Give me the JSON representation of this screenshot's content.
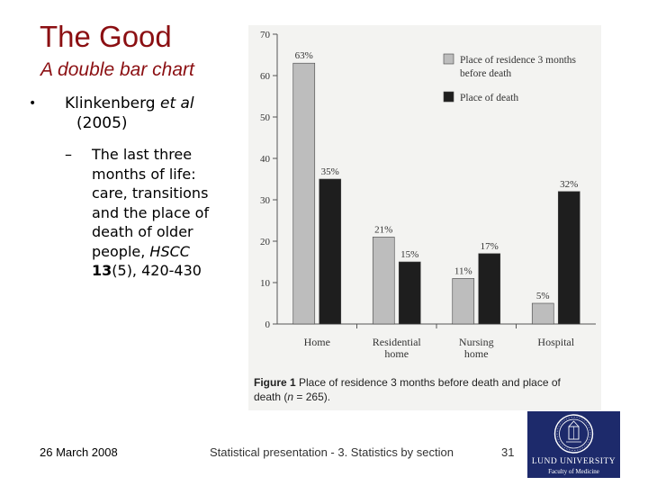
{
  "slide": {
    "title": "The Good",
    "subtitle": "A double bar chart",
    "bullet": {
      "marker": "•",
      "ref_plain": "Klinkenberg ",
      "ref_italic": "et al",
      "year": "(2005)"
    },
    "sub_bullet": {
      "marker": "–",
      "lines": [
        "The last three",
        "months of life:",
        "care, transitions",
        "and the place of",
        "death of older"
      ],
      "line6_plain": "people, ",
      "line6_italic": "HSCC",
      "vol_bold": "13",
      "vol_rest": "(5), 420-430"
    },
    "footer": {
      "date": "26 March 2008",
      "title": "Statistical presentation - 3. Statistics by section",
      "page": "31"
    },
    "logo": {
      "name": "LUND UNIVERSITY",
      "faculty": "Faculty of Medicine",
      "seal_icon": "university-seal-icon"
    }
  },
  "figure_caption": {
    "label": "Figure 1",
    "text1": "Place of residence 3 months before death and place of",
    "text2_pre": "death (",
    "text2_n": "n",
    "text2_post": " = 265)."
  },
  "chart_data": {
    "type": "bar",
    "categories": [
      "Home",
      "Residential\nhome",
      "Nursing\nhome",
      "Hospital"
    ],
    "series": [
      {
        "name": "Place of residence 3 months before death",
        "values": [
          63,
          21,
          11,
          5
        ],
        "labels": [
          "63%",
          "21%",
          "11%",
          "5%"
        ],
        "color": "#bdbdbd"
      },
      {
        "name": "Place of death",
        "values": [
          35,
          15,
          17,
          32
        ],
        "labels": [
          "35%",
          "15%",
          "17%",
          "32%"
        ],
        "color": "#1e1e1e"
      }
    ],
    "yticks": [
      0,
      10,
      20,
      30,
      40,
      50,
      60,
      70
    ],
    "ylim": [
      0,
      70
    ],
    "legend_position": "top-right",
    "grid": false,
    "xlabel": "",
    "ylabel": ""
  },
  "colors": {
    "title": "#8b0f12",
    "logo_bg": "#1d2a6b",
    "figure_bg": "#f3f3f1"
  }
}
